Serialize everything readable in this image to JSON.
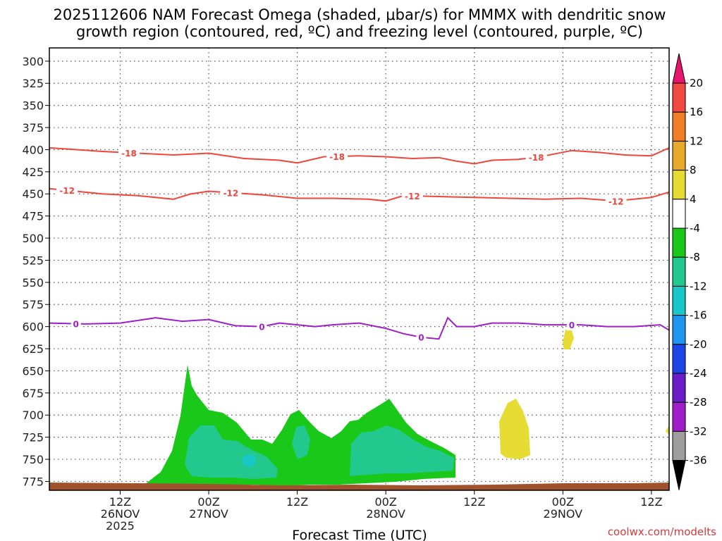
{
  "chart_data": {
    "type": "contour",
    "title_line1": "2025112606 NAM Forecast Omega (shaded, μbar/s) for MMMX with dendritic snow",
    "title_line2": "growth region (contoured, red, ºC) and freezing level (contoured, purple, ºC)",
    "xlabel": "Forecast Time (UTC)",
    "credit": "coolwx.com/modelts",
    "x_range_hours": [
      -8,
      62
    ],
    "y_range_mb": [
      285,
      785
    ],
    "y_ticks": [
      "300",
      "325",
      "350",
      "375",
      "400",
      "425",
      "450",
      "475",
      "500",
      "525",
      "550",
      "575",
      "600",
      "625",
      "650",
      "675",
      "700",
      "725",
      "750",
      "775"
    ],
    "x_ticks": [
      {
        "hour": 0,
        "lines": [
          "12Z",
          "26NOV",
          "2025"
        ]
      },
      {
        "hour": 10,
        "lines": [
          "00Z",
          "27NOV"
        ]
      },
      {
        "hour": 20,
        "lines": [
          "12Z"
        ]
      },
      {
        "hour": 30,
        "lines": [
          "00Z",
          "28NOV"
        ]
      },
      {
        "hour": 40,
        "lines": [
          "12Z"
        ]
      },
      {
        "hour": 50,
        "lines": [
          "00Z",
          "29NOV"
        ]
      },
      {
        "hour": 60,
        "lines": [
          "12Z"
        ]
      }
    ],
    "colorbar": {
      "labels": [
        "20",
        "16",
        "12",
        "8",
        "4",
        "-4",
        "-8",
        "-12",
        "-16",
        "-20",
        "-24",
        "-28",
        "-32",
        "-36"
      ],
      "colors": [
        "#e8156e",
        "#f04a40",
        "#f07d27",
        "#e8a82a",
        "#e6dc33",
        "#ffffff",
        "#1ac81a",
        "#22c88e",
        "#18c8c8",
        "#1e96f0",
        "#1e46e6",
        "#6a1ec8",
        "#a01ec8",
        "#9e9e9e",
        "#000000"
      ]
    },
    "contours": [
      {
        "label": "-18",
        "color": "#f0453a",
        "points": [
          [
            -8,
            398
          ],
          [
            -5,
            400
          ],
          [
            -2,
            402
          ],
          [
            2,
            404
          ],
          [
            6,
            406
          ],
          [
            10,
            404
          ],
          [
            14,
            410
          ],
          [
            18,
            412
          ],
          [
            20,
            415
          ],
          [
            23,
            408
          ],
          [
            27,
            407
          ],
          [
            30,
            408
          ],
          [
            33,
            410
          ],
          [
            36,
            409
          ],
          [
            38,
            413
          ],
          [
            40,
            416
          ],
          [
            42,
            412
          ],
          [
            45,
            411
          ],
          [
            48,
            407
          ],
          [
            51,
            401
          ],
          [
            54,
            403
          ],
          [
            57,
            406
          ],
          [
            60,
            407
          ],
          [
            62,
            398
          ]
        ],
        "label_hours": [
          1,
          24.5,
          47
        ]
      },
      {
        "label": "-12",
        "color": "#f0453a",
        "points": [
          [
            -8,
            444
          ],
          [
            -5,
            447
          ],
          [
            -2,
            450
          ],
          [
            2,
            452
          ],
          [
            6,
            456
          ],
          [
            8,
            450
          ],
          [
            10,
            447
          ],
          [
            13,
            449
          ],
          [
            16,
            451
          ],
          [
            20,
            455
          ],
          [
            24,
            455
          ],
          [
            28,
            456
          ],
          [
            30,
            458
          ],
          [
            32,
            452
          ],
          [
            36,
            453
          ],
          [
            40,
            454
          ],
          [
            44,
            455
          ],
          [
            48,
            456
          ],
          [
            52,
            455
          ],
          [
            56,
            458
          ],
          [
            60,
            454
          ],
          [
            62,
            448
          ]
        ],
        "label_hours": [
          -6,
          12.5,
          33,
          56
        ]
      },
      {
        "label": "0",
        "color": "#9e1ec8",
        "points": [
          [
            -8,
            596
          ],
          [
            -4,
            597
          ],
          [
            0,
            596
          ],
          [
            4,
            590
          ],
          [
            7,
            594
          ],
          [
            10,
            592
          ],
          [
            13,
            599
          ],
          [
            16,
            600
          ],
          [
            18,
            596
          ],
          [
            20,
            598
          ],
          [
            22,
            600
          ],
          [
            24,
            598
          ],
          [
            27,
            596
          ],
          [
            30,
            602
          ],
          [
            32,
            608
          ],
          [
            34,
            612
          ],
          [
            36,
            614
          ],
          [
            37,
            590
          ],
          [
            38,
            600
          ],
          [
            40,
            600
          ],
          [
            42,
            596
          ],
          [
            45,
            596
          ],
          [
            48,
            598
          ],
          [
            52,
            598
          ],
          [
            55,
            600
          ],
          [
            58,
            600
          ],
          [
            61,
            598
          ],
          [
            62,
            604
          ]
        ],
        "label_hours": [
          -5,
          16,
          34,
          51
        ]
      }
    ],
    "shaded_regions": [
      {
        "level": "-4 to -8",
        "color": "#1ac81a"
      },
      {
        "level": "-8 to -12",
        "color": "#22c88e"
      },
      {
        "level": "-12 to -16",
        "color": "#18c8c8"
      },
      {
        "level": "4 to 8",
        "color": "#e6dc33"
      },
      {
        "level": "terrain",
        "color": "#a0522d"
      }
    ]
  }
}
